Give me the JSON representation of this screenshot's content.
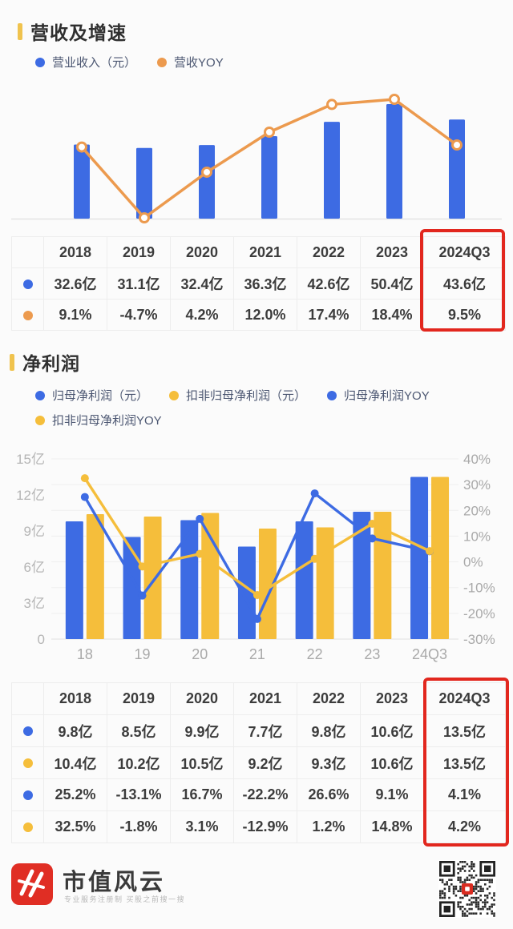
{
  "colors": {
    "blue": "#3D6BE3",
    "orange": "#EC9A4E",
    "yellow": "#F5BE3B",
    "accent_gold": "#F0C34E",
    "highlight_red": "#E2271E",
    "text_dark": "#3C3C3C",
    "legend_text": "#4B5671",
    "axis_gray": "#ABABAB",
    "grid": "#EDEDED",
    "background": "#FBFBFB",
    "brand_red": "#E02E24"
  },
  "section_revenue": {
    "title": "营收及增速",
    "legend": [
      {
        "label": "营业收入（元）",
        "color": "blue"
      },
      {
        "label": "营收YOY",
        "color": "orange"
      }
    ],
    "table": {
      "columns": [
        "2018",
        "2019",
        "2020",
        "2021",
        "2022",
        "2023",
        "2024Q3"
      ],
      "rows": [
        {
          "dot": "blue",
          "cells": [
            "32.6亿",
            "31.1亿",
            "32.4亿",
            "36.3亿",
            "42.6亿",
            "50.4亿",
            "43.6亿"
          ]
        },
        {
          "dot": "orange",
          "cells": [
            "9.1%",
            "-4.7%",
            "4.2%",
            "12.0%",
            "17.4%",
            "18.4%",
            "9.5%"
          ]
        }
      ],
      "highlighted_column": "2024Q3"
    }
  },
  "section_profit": {
    "title": "净利润",
    "legend": [
      {
        "label": "归母净利润（元）",
        "color": "blue"
      },
      {
        "label": "扣非归母净利润（元）",
        "color": "yellow"
      },
      {
        "label": "归母净利润YOY",
        "color": "blue"
      },
      {
        "label": "扣非归母净利润YOY",
        "color": "yellow"
      }
    ],
    "table": {
      "columns": [
        "2018",
        "2019",
        "2020",
        "2021",
        "2022",
        "2023",
        "2024Q3"
      ],
      "rows": [
        {
          "dot": "blue",
          "cells": [
            "9.8亿",
            "8.5亿",
            "9.9亿",
            "7.7亿",
            "9.8亿",
            "10.6亿",
            "13.5亿"
          ]
        },
        {
          "dot": "yellow",
          "cells": [
            "10.4亿",
            "10.2亿",
            "10.5亿",
            "9.2亿",
            "9.3亿",
            "10.6亿",
            "13.5亿"
          ]
        },
        {
          "dot": "blue",
          "cells": [
            "25.2%",
            "-13.1%",
            "16.7%",
            "-22.2%",
            "26.6%",
            "9.1%",
            "4.1%"
          ]
        },
        {
          "dot": "yellow",
          "cells": [
            "32.5%",
            "-1.8%",
            "3.1%",
            "-12.9%",
            "1.2%",
            "14.8%",
            "4.2%"
          ]
        }
      ],
      "highlighted_column": "2024Q3"
    }
  },
  "chart_data": [
    {
      "type": "bar+line",
      "title": "营收及增速",
      "categories": [
        "2018",
        "2019",
        "2020",
        "2021",
        "2022",
        "2023",
        "2024Q3"
      ],
      "series": [
        {
          "name": "营业收入（元）",
          "type": "bar",
          "unit": "亿",
          "color": "blue",
          "values": [
            32.6,
            31.1,
            32.4,
            36.3,
            42.6,
            50.4,
            43.6
          ]
        },
        {
          "name": "营收YOY",
          "type": "line",
          "unit": "%",
          "color": "orange",
          "marker": "open-circle",
          "values": [
            9.1,
            -4.7,
            4.2,
            12.0,
            17.4,
            18.4,
            9.5
          ]
        }
      ],
      "axes": "hidden (values shown in table below)",
      "legend_position": "top"
    },
    {
      "type": "bar+line",
      "title": "净利润",
      "categories": [
        "18",
        "19",
        "20",
        "21",
        "22",
        "23",
        "24Q3"
      ],
      "left_axis": {
        "min": 0,
        "max": 15,
        "tick_labels": [
          "15亿",
          "12亿",
          "9亿",
          "6亿",
          "3亿",
          "0"
        ],
        "tick_values": [
          15,
          12,
          9,
          6,
          3,
          0
        ]
      },
      "right_axis": {
        "min": -30,
        "max": 40,
        "tick_labels": [
          "40%",
          "30%",
          "20%",
          "10%",
          "0%",
          "-10%",
          "-20%",
          "-30%"
        ],
        "tick_values": [
          40,
          30,
          20,
          10,
          0,
          -10,
          -20,
          -30
        ]
      },
      "grid": "horizontal gridlines at right-axis ticks",
      "legend_position": "top",
      "series": [
        {
          "name": "归母净利润（元）",
          "type": "bar",
          "axis": "left",
          "unit": "亿",
          "color": "blue",
          "values": [
            9.8,
            8.5,
            9.9,
            7.7,
            9.8,
            10.6,
            13.5
          ]
        },
        {
          "name": "扣非归母净利润（元）",
          "type": "bar",
          "axis": "left",
          "unit": "亿",
          "color": "yellow",
          "values": [
            10.4,
            10.2,
            10.5,
            9.2,
            9.3,
            10.6,
            13.5
          ]
        },
        {
          "name": "归母净利润YOY",
          "type": "line",
          "axis": "right",
          "unit": "%",
          "color": "blue",
          "marker": "solid-circle",
          "values": [
            25.2,
            -13.1,
            16.7,
            -22.2,
            26.6,
            9.1,
            4.1
          ]
        },
        {
          "name": "扣非归母净利润YOY",
          "type": "line",
          "axis": "right",
          "unit": "%",
          "color": "yellow",
          "marker": "solid-circle",
          "values": [
            32.5,
            -1.8,
            3.1,
            -12.9,
            1.2,
            14.8,
            4.2
          ]
        }
      ]
    }
  ],
  "footer": {
    "brand_name": "市值风云",
    "tagline": "专业服务注册制 买股之前搜一搜",
    "qr_code": "qr-code"
  }
}
